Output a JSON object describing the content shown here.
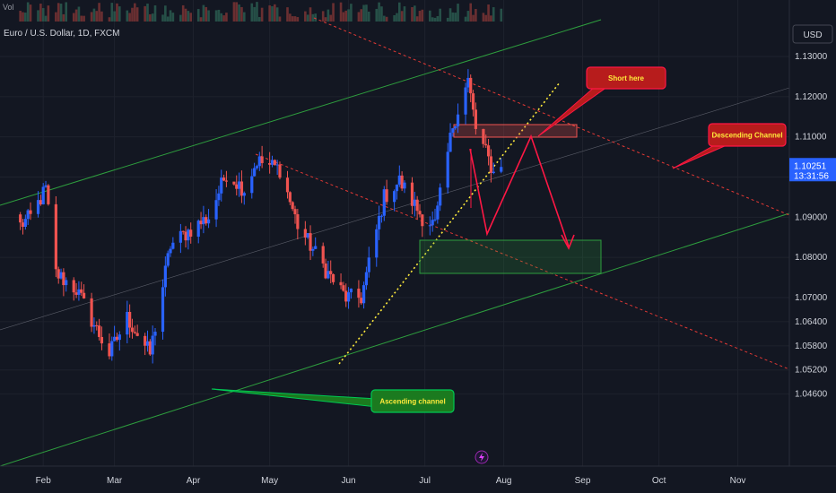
{
  "header": {
    "vol_label": "Vol",
    "symbol": "Euro / U.S. Dollar, 1D, FXCM"
  },
  "currency_button": "USD",
  "colors": {
    "background": "#131722",
    "bull": "#2962ff",
    "bear": "#ef5350",
    "ascending_channel": "#2e9e3e",
    "descending_channel": "#e53935",
    "price_tag": "#2962ff"
  },
  "chart_data": {
    "type": "candlestick",
    "symbol": "Euro / U.S. Dollar",
    "timeframe": "1D",
    "broker": "FXCM",
    "ylim": [
      1.042,
      1.133
    ],
    "y_ticks": [
      "1.13000",
      "1.12000",
      "1.11000",
      "1.10000",
      "1.09000",
      "1.08000",
      "1.07000",
      "1.06400",
      "1.05800",
      "1.05200",
      "1.04600"
    ],
    "x_ticks": [
      "Feb",
      "Mar",
      "Apr",
      "May",
      "Jun",
      "Jul",
      "Aug",
      "Sep",
      "Oct",
      "Nov"
    ],
    "current_price": "1.10251",
    "countdown": "13:31:56",
    "candle_anchors": [
      [
        "2023-01-23",
        1.088
      ],
      [
        "2023-01-27",
        1.09
      ],
      [
        "2023-02-02",
        1.097
      ],
      [
        "2023-02-06",
        1.076
      ],
      [
        "2023-02-14",
        1.072
      ],
      [
        "2023-02-22",
        1.062
      ],
      [
        "2023-02-27",
        1.056
      ],
      [
        "2023-03-06",
        1.065
      ],
      [
        "2023-03-15",
        1.056
      ],
      [
        "2023-03-23",
        1.083
      ],
      [
        "2023-03-31",
        1.087
      ],
      [
        "2023-04-07",
        1.09
      ],
      [
        "2023-04-14",
        1.101
      ],
      [
        "2023-04-21",
        1.097
      ],
      [
        "2023-04-26",
        1.104
      ],
      [
        "2023-05-05",
        1.102
      ],
      [
        "2023-05-12",
        1.088
      ],
      [
        "2023-05-24",
        1.076
      ],
      [
        "2023-05-31",
        1.07
      ],
      [
        "2023-06-06",
        1.07
      ],
      [
        "2023-06-15",
        1.095
      ],
      [
        "2023-06-21",
        1.099
      ],
      [
        "2023-06-30",
        1.09
      ],
      [
        "2023-07-05",
        1.088
      ],
      [
        "2023-07-12",
        1.113
      ],
      [
        "2023-07-18",
        1.124
      ],
      [
        "2023-07-21",
        1.112
      ],
      [
        "2023-07-25",
        1.106
      ],
      [
        "2023-07-28",
        1.101
      ],
      [
        "2023-07-31",
        1.1025
      ]
    ],
    "annotations": [
      {
        "type": "callout",
        "text": "Short here",
        "color": "#ff1744"
      },
      {
        "type": "callout",
        "text": "Descending Channel",
        "color": "#ff1744"
      },
      {
        "type": "callout",
        "text": "Ascending channel",
        "color": "#00c853"
      },
      {
        "type": "channel",
        "name": "Ascending channel",
        "color": "#2e9e3e"
      },
      {
        "type": "channel",
        "name": "Descending Channel",
        "color": "#e53935"
      },
      {
        "type": "zone",
        "kind": "supply",
        "range": [
          1.1125,
          1.114
        ]
      },
      {
        "type": "zone",
        "kind": "demand",
        "range": [
          1.084,
          1.0905
        ]
      },
      {
        "type": "trendline",
        "style": "dotted",
        "color": "#ffeb3b"
      },
      {
        "type": "projection",
        "color": "#ff1744",
        "path": [
          1.102,
          1.092,
          1.113,
          1.089
        ]
      }
    ]
  }
}
